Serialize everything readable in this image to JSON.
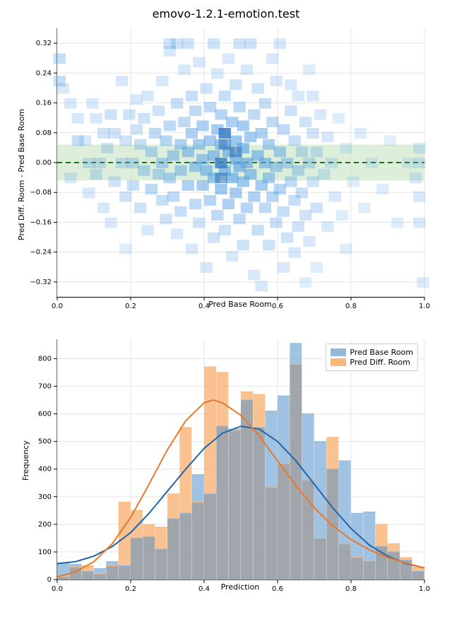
{
  "title": "emovo-1.2.1-emotion.test",
  "colors": {
    "scatter_fill": "#5ca3e6",
    "scatter_dark": "#2a6fb5",
    "zero_line": "#006400",
    "band": "#c7e5c1",
    "hist_base_fill": "#8fb9de",
    "hist_diff_fill": "#f8b77c",
    "kde_base": "#2166ac",
    "kde_diff": "#e6782e",
    "grid": "#e5e5e5",
    "text": "#000000",
    "bg": "#ffffff",
    "overlap": "#8f969c"
  },
  "scatter": {
    "xlabel": "Pred Base Room",
    "ylabel": "Pred Diff. Room - Pred Base Room",
    "xlim": [
      0.0,
      1.0
    ],
    "ylim": [
      -0.36,
      0.36
    ],
    "xticks": [
      0.0,
      0.2,
      0.4,
      0.6,
      0.8,
      1.0
    ],
    "yticks": [
      -0.32,
      -0.24,
      -0.16,
      -0.08,
      0.0,
      0.08,
      0.16,
      0.24,
      0.32
    ],
    "yticks_minor": [
      "−0.32",
      "−0.24",
      "−0.16",
      "−0.08",
      "0.00",
      "0.08",
      "0.16",
      "0.24",
      "0.32"
    ],
    "band_y": [
      -0.048,
      0.048
    ],
    "heat_cells": [
      [
        0.0,
        0.28,
        0.35
      ],
      [
        0.0,
        0.22,
        0.35
      ],
      [
        0.01,
        0.2,
        0.25
      ],
      [
        0.03,
        0.16,
        0.25
      ],
      [
        0.03,
        -0.04,
        0.25
      ],
      [
        0.05,
        0.12,
        0.25
      ],
      [
        0.05,
        0.06,
        0.35
      ],
      [
        0.08,
        0.0,
        0.3
      ],
      [
        0.08,
        -0.08,
        0.25
      ],
      [
        0.07,
        0.06,
        0.25
      ],
      [
        0.09,
        0.16,
        0.25
      ],
      [
        0.1,
        -0.03,
        0.3
      ],
      [
        0.1,
        0.12,
        0.25
      ],
      [
        0.11,
        0.0,
        0.3
      ],
      [
        0.12,
        0.08,
        0.3
      ],
      [
        0.12,
        -0.12,
        0.25
      ],
      [
        0.13,
        0.04,
        0.3
      ],
      [
        0.14,
        0.13,
        0.3
      ],
      [
        0.14,
        -0.16,
        0.25
      ],
      [
        0.15,
        0.08,
        0.3
      ],
      [
        0.15,
        -0.05,
        0.3
      ],
      [
        0.17,
        0.0,
        0.3
      ],
      [
        0.17,
        0.22,
        0.25
      ],
      [
        0.18,
        -0.23,
        0.2
      ],
      [
        0.18,
        0.06,
        0.3
      ],
      [
        0.18,
        -0.09,
        0.3
      ],
      [
        0.19,
        0.13,
        0.3
      ],
      [
        0.2,
        0.0,
        0.35
      ],
      [
        0.2,
        -0.06,
        0.35
      ],
      [
        0.21,
        0.09,
        0.3
      ],
      [
        0.21,
        0.17,
        0.25
      ],
      [
        0.22,
        -0.12,
        0.3
      ],
      [
        0.22,
        0.05,
        0.35
      ],
      [
        0.23,
        -0.02,
        0.4
      ],
      [
        0.23,
        0.12,
        0.3
      ],
      [
        0.24,
        0.18,
        0.25
      ],
      [
        0.24,
        -0.18,
        0.25
      ],
      [
        0.25,
        0.03,
        0.4
      ],
      [
        0.25,
        -0.07,
        0.4
      ],
      [
        0.26,
        0.08,
        0.4
      ],
      [
        0.27,
        -0.03,
        0.4
      ],
      [
        0.27,
        0.14,
        0.3
      ],
      [
        0.28,
        0.0,
        0.45
      ],
      [
        0.28,
        -0.1,
        0.35
      ],
      [
        0.28,
        0.22,
        0.25
      ],
      [
        0.29,
        0.06,
        0.45
      ],
      [
        0.29,
        -0.15,
        0.3
      ],
      [
        0.3,
        0.3,
        0.25
      ],
      [
        0.3,
        0.32,
        0.3
      ],
      [
        0.3,
        -0.04,
        0.45
      ],
      [
        0.3,
        0.1,
        0.4
      ],
      [
        0.31,
        0.02,
        0.5
      ],
      [
        0.31,
        -0.09,
        0.4
      ],
      [
        0.32,
        0.32,
        0.3
      ],
      [
        0.32,
        0.16,
        0.35
      ],
      [
        0.32,
        -0.19,
        0.25
      ],
      [
        0.33,
        0.05,
        0.5
      ],
      [
        0.33,
        -0.02,
        0.5
      ],
      [
        0.33,
        -0.13,
        0.35
      ],
      [
        0.34,
        0.11,
        0.4
      ],
      [
        0.34,
        0.25,
        0.25
      ],
      [
        0.35,
        -0.06,
        0.5
      ],
      [
        0.35,
        0.03,
        0.55
      ],
      [
        0.35,
        0.32,
        0.3
      ],
      [
        0.36,
        -0.23,
        0.25
      ],
      [
        0.36,
        0.08,
        0.5
      ],
      [
        0.36,
        0.18,
        0.35
      ],
      [
        0.37,
        -0.01,
        0.55
      ],
      [
        0.37,
        -0.11,
        0.4
      ],
      [
        0.37,
        0.14,
        0.4
      ],
      [
        0.38,
        0.05,
        0.55
      ],
      [
        0.38,
        -0.16,
        0.3
      ],
      [
        0.38,
        0.27,
        0.25
      ],
      [
        0.39,
        0.01,
        0.55
      ],
      [
        0.39,
        -0.06,
        0.55
      ],
      [
        0.39,
        0.1,
        0.5
      ],
      [
        0.4,
        -0.28,
        0.25
      ],
      [
        0.4,
        0.2,
        0.3
      ],
      [
        0.4,
        -0.02,
        0.6
      ],
      [
        0.41,
        0.06,
        0.55
      ],
      [
        0.41,
        -0.1,
        0.45
      ],
      [
        0.41,
        0.15,
        0.4
      ],
      [
        0.42,
        0.02,
        0.6
      ],
      [
        0.42,
        -0.04,
        0.6
      ],
      [
        0.42,
        0.32,
        0.3
      ],
      [
        0.42,
        -0.2,
        0.3
      ],
      [
        0.43,
        0.09,
        0.55
      ],
      [
        0.43,
        -0.14,
        0.4
      ],
      [
        0.43,
        0.24,
        0.25
      ],
      [
        0.44,
        0.0,
        0.65
      ],
      [
        0.44,
        0.05,
        0.6
      ],
      [
        0.44,
        -0.07,
        0.6
      ],
      [
        0.44,
        0.13,
        0.45
      ],
      [
        0.45,
        -0.02,
        0.65
      ],
      [
        0.45,
        -0.18,
        0.3
      ],
      [
        0.45,
        0.18,
        0.35
      ],
      [
        0.45,
        0.08,
        0.78
      ],
      [
        0.46,
        0.03,
        0.65
      ],
      [
        0.46,
        -0.11,
        0.5
      ],
      [
        0.46,
        0.28,
        0.25
      ],
      [
        0.47,
        -0.04,
        0.65
      ],
      [
        0.47,
        0.11,
        0.5
      ],
      [
        0.47,
        -0.25,
        0.25
      ],
      [
        0.48,
        0.01,
        0.65
      ],
      [
        0.48,
        0.06,
        0.6
      ],
      [
        0.48,
        -0.08,
        0.55
      ],
      [
        0.48,
        0.21,
        0.3
      ],
      [
        0.49,
        -0.01,
        0.65
      ],
      [
        0.49,
        0.15,
        0.4
      ],
      [
        0.49,
        -0.15,
        0.4
      ],
      [
        0.49,
        0.32,
        0.3
      ],
      [
        0.5,
        0.04,
        0.65
      ],
      [
        0.5,
        -0.05,
        0.6
      ],
      [
        0.5,
        0.1,
        0.55
      ],
      [
        0.5,
        -0.22,
        0.3
      ],
      [
        0.51,
        0.0,
        0.65
      ],
      [
        0.51,
        -0.12,
        0.45
      ],
      [
        0.51,
        0.25,
        0.25
      ],
      [
        0.52,
        0.07,
        0.55
      ],
      [
        0.52,
        -0.03,
        0.6
      ],
      [
        0.52,
        0.32,
        0.3
      ],
      [
        0.53,
        -0.09,
        0.5
      ],
      [
        0.53,
        0.13,
        0.4
      ],
      [
        0.53,
        -0.3,
        0.25
      ],
      [
        0.54,
        0.02,
        0.6
      ],
      [
        0.54,
        -0.18,
        0.35
      ],
      [
        0.54,
        0.2,
        0.3
      ],
      [
        0.55,
        -0.06,
        0.55
      ],
      [
        0.55,
        0.08,
        0.5
      ],
      [
        0.55,
        -0.33,
        0.25
      ],
      [
        0.56,
        0.0,
        0.6
      ],
      [
        0.56,
        -0.12,
        0.4
      ],
      [
        0.56,
        0.16,
        0.35
      ],
      [
        0.57,
        0.05,
        0.5
      ],
      [
        0.57,
        -0.22,
        0.3
      ],
      [
        0.57,
        -0.04,
        0.55
      ],
      [
        0.58,
        0.11,
        0.4
      ],
      [
        0.58,
        -0.09,
        0.45
      ],
      [
        0.58,
        0.28,
        0.25
      ],
      [
        0.59,
        -0.01,
        0.5
      ],
      [
        0.59,
        -0.16,
        0.35
      ],
      [
        0.59,
        0.22,
        0.25
      ],
      [
        0.6,
        0.03,
        0.5
      ],
      [
        0.6,
        -0.07,
        0.45
      ],
      [
        0.6,
        0.32,
        0.25
      ],
      [
        0.61,
        -0.13,
        0.35
      ],
      [
        0.61,
        0.09,
        0.4
      ],
      [
        0.61,
        -0.28,
        0.25
      ],
      [
        0.62,
        0.0,
        0.45
      ],
      [
        0.62,
        -0.2,
        0.3
      ],
      [
        0.63,
        0.14,
        0.3
      ],
      [
        0.63,
        -0.05,
        0.4
      ],
      [
        0.63,
        0.21,
        0.25
      ],
      [
        0.64,
        -0.1,
        0.35
      ],
      [
        0.64,
        0.06,
        0.35
      ],
      [
        0.64,
        -0.24,
        0.25
      ],
      [
        0.65,
        -0.02,
        0.4
      ],
      [
        0.65,
        0.18,
        0.25
      ],
      [
        0.65,
        -0.17,
        0.3
      ],
      [
        0.66,
        0.03,
        0.35
      ],
      [
        0.66,
        -0.08,
        0.35
      ],
      [
        0.67,
        0.11,
        0.3
      ],
      [
        0.67,
        -0.14,
        0.3
      ],
      [
        0.67,
        -0.32,
        0.2
      ],
      [
        0.68,
        0.0,
        0.35
      ],
      [
        0.68,
        0.25,
        0.2
      ],
      [
        0.68,
        -0.21,
        0.25
      ],
      [
        0.69,
        -0.05,
        0.3
      ],
      [
        0.69,
        0.08,
        0.3
      ],
      [
        0.69,
        0.18,
        0.25
      ],
      [
        0.7,
        -0.12,
        0.3
      ],
      [
        0.7,
        0.03,
        0.3
      ],
      [
        0.7,
        -0.28,
        0.2
      ],
      [
        0.71,
        0.13,
        0.25
      ],
      [
        0.72,
        -0.03,
        0.25
      ],
      [
        0.73,
        0.07,
        0.25
      ],
      [
        0.73,
        -0.17,
        0.25
      ],
      [
        0.74,
        0.0,
        0.25
      ],
      [
        0.75,
        -0.09,
        0.25
      ],
      [
        0.76,
        0.12,
        0.2
      ],
      [
        0.77,
        -0.14,
        0.2
      ],
      [
        0.78,
        0.04,
        0.2
      ],
      [
        0.78,
        -0.23,
        0.2
      ],
      [
        0.8,
        -0.05,
        0.2
      ],
      [
        0.82,
        0.08,
        0.2
      ],
      [
        0.83,
        -0.12,
        0.2
      ],
      [
        0.85,
        0.0,
        0.2
      ],
      [
        0.88,
        -0.07,
        0.2
      ],
      [
        0.9,
        0.06,
        0.18
      ],
      [
        0.92,
        -0.16,
        0.2
      ],
      [
        0.95,
        0.0,
        0.18
      ],
      [
        0.97,
        -0.04,
        0.25
      ],
      [
        0.98,
        -0.09,
        0.25
      ],
      [
        0.98,
        -0.16,
        0.25
      ],
      [
        0.99,
        -0.32,
        0.22
      ],
      [
        0.98,
        0.0,
        0.25
      ],
      [
        0.98,
        0.04,
        0.25
      ]
    ]
  },
  "hist": {
    "xlabel": "Prediction",
    "ylabel": "Frequency",
    "xlim": [
      0.0,
      1.0
    ],
    "ylim": [
      0,
      870
    ],
    "xticks": [
      0.0,
      0.2,
      0.4,
      0.6,
      0.8,
      1.0
    ],
    "yticks": [
      0,
      100,
      200,
      300,
      400,
      500,
      600,
      700,
      800
    ],
    "n_bins": 30,
    "base_bins": [
      60,
      55,
      30,
      40,
      65,
      50,
      150,
      155,
      110,
      220,
      240,
      380,
      310,
      555,
      545,
      650,
      550,
      610,
      665,
      855,
      600,
      500,
      400,
      430,
      240,
      245,
      120,
      100,
      70,
      30
    ],
    "diff_bins": [
      10,
      45,
      50,
      20,
      50,
      280,
      250,
      200,
      190,
      310,
      550,
      280,
      770,
      750,
      540,
      680,
      670,
      335,
      420,
      780,
      360,
      150,
      515,
      130,
      80,
      68,
      200,
      130,
      80,
      45
    ],
    "kde_base_pts": [
      [
        0,
        58
      ],
      [
        0.05,
        65
      ],
      [
        0.1,
        85
      ],
      [
        0.15,
        120
      ],
      [
        0.2,
        170
      ],
      [
        0.25,
        240
      ],
      [
        0.3,
        320
      ],
      [
        0.35,
        400
      ],
      [
        0.4,
        475
      ],
      [
        0.45,
        530
      ],
      [
        0.5,
        555
      ],
      [
        0.55,
        545
      ],
      [
        0.6,
        500
      ],
      [
        0.65,
        430
      ],
      [
        0.7,
        345
      ],
      [
        0.75,
        260
      ],
      [
        0.8,
        185
      ],
      [
        0.85,
        125
      ],
      [
        0.9,
        85
      ],
      [
        0.95,
        58
      ],
      [
        1.0,
        42
      ]
    ],
    "kde_diff_pts": [
      [
        0,
        10
      ],
      [
        0.05,
        28
      ],
      [
        0.1,
        65
      ],
      [
        0.15,
        130
      ],
      [
        0.2,
        225
      ],
      [
        0.25,
        345
      ],
      [
        0.3,
        470
      ],
      [
        0.35,
        575
      ],
      [
        0.4,
        640
      ],
      [
        0.425,
        650
      ],
      [
        0.45,
        640
      ],
      [
        0.5,
        595
      ],
      [
        0.55,
        520
      ],
      [
        0.6,
        430
      ],
      [
        0.65,
        340
      ],
      [
        0.7,
        260
      ],
      [
        0.75,
        195
      ],
      [
        0.8,
        145
      ],
      [
        0.85,
        108
      ],
      [
        0.9,
        80
      ],
      [
        0.95,
        60
      ],
      [
        1.0,
        42
      ]
    ],
    "legend": {
      "base": "Pred Base Room",
      "diff": "Pred Diff. Room"
    }
  },
  "typography": {
    "title_fontsize": 16,
    "label_fontsize": 11,
    "tick_fontsize": 10
  }
}
